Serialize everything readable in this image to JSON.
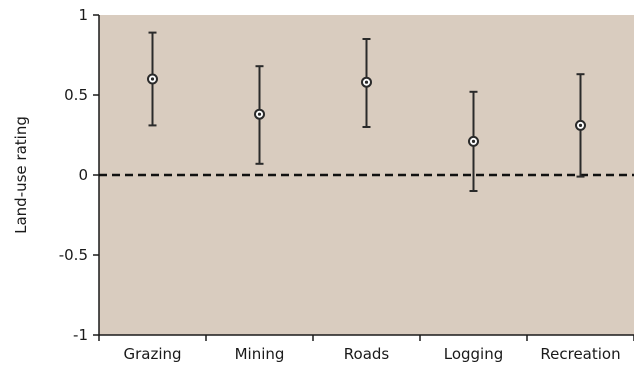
{
  "chart_data": {
    "type": "scatter",
    "title": "",
    "xlabel": "",
    "ylabel": "Land-use rating",
    "ylim": [
      -1,
      1
    ],
    "y_ticks": [
      "1",
      "0.5",
      "0",
      "-0.5",
      "-1"
    ],
    "categories": [
      "Grazing",
      "Mining",
      "Roads",
      "Logging",
      "Recreation"
    ],
    "values": [
      0.6,
      0.38,
      0.58,
      0.21,
      0.31
    ],
    "error_low": [
      0.31,
      0.07,
      0.3,
      -0.1,
      -0.01
    ],
    "error_high": [
      0.89,
      0.68,
      0.85,
      0.52,
      0.63
    ],
    "reference_line": 0,
    "grid": false,
    "colors": {
      "plot_background": "#d9ccbf",
      "marker": "#2a2a2a",
      "error_bar": "#2a2a2a",
      "axis": "#1a1a1a"
    }
  }
}
